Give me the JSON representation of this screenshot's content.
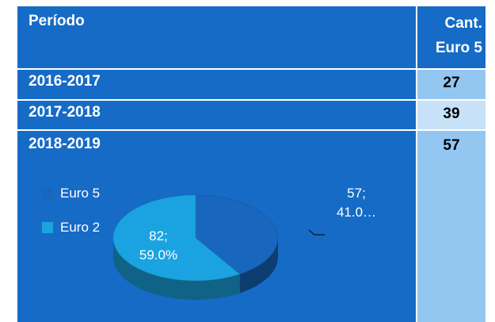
{
  "table": {
    "header": [
      "Período",
      "Cant.\nEuro 5"
    ],
    "rows": [
      [
        "2016-2017",
        27
      ],
      [
        "2017-2018",
        39
      ],
      [
        "2018-2019",
        57
      ]
    ]
  },
  "chart_data": {
    "type": "pie",
    "categories": [
      "Euro 5",
      "Euro 2"
    ],
    "values": [
      57,
      82
    ],
    "value_labels": [
      "57;\n41.0…",
      "82;\n59.0%"
    ],
    "colors": [
      "#1866bd",
      "#1aa3e0"
    ]
  }
}
